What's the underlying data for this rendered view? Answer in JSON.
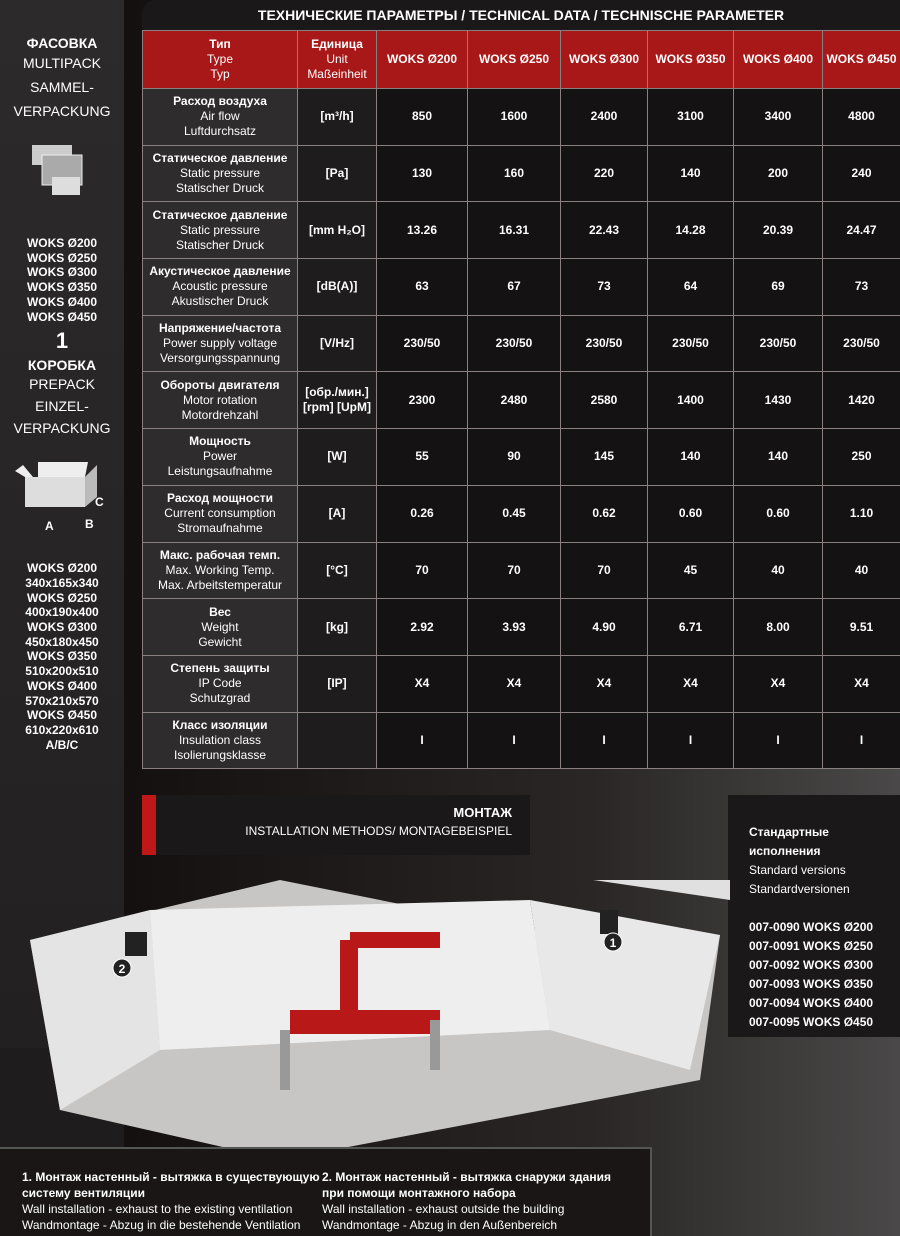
{
  "sidebar": {
    "multipack": [
      "ФАСОВКА",
      "MULTIPACK",
      "SAMMEL-",
      "VERPACKUNG"
    ],
    "multipack_models": [
      "WOKS Ø200",
      "WOKS Ø250",
      "WOKS Ø300",
      "WOKS Ø350",
      "WOKS Ø400",
      "WOKS Ø450"
    ],
    "multipack_qty": "1",
    "prepack": [
      "КОРОБКА",
      "PREPACK",
      "EINZEL-",
      "VERPACKUNG"
    ],
    "box_labels": [
      "A",
      "B",
      "C"
    ],
    "dims": [
      "WOKS Ø200",
      "340x165x340",
      "WOKS Ø250",
      "400x190x400",
      "WOKS Ø300",
      "450x180x450",
      "WOKS Ø350",
      "510x200x510",
      "WOKS Ø400",
      "570x210x570",
      "WOKS Ø450",
      "610x220x610",
      "A/B/C"
    ]
  },
  "table": {
    "title": "ТЕХНИЧЕСКИЕ ПАРАМЕТРЫ / TECHNICAL DATA / TECHNISCHE PARAMETER",
    "head_param": [
      "Тип",
      "Type",
      "Typ"
    ],
    "head_unit": [
      "Единица",
      "Unit",
      "Maßeinheit"
    ],
    "models": [
      "WOKS Ø200",
      "WOKS Ø250",
      "WOKS Ø300",
      "WOKS Ø350",
      "WOKS Ø400",
      "WOKS Ø450"
    ],
    "rows": [
      {
        "p": [
          "Расход воздуха",
          "Air flow",
          "Luftdurchsatz"
        ],
        "u": "[m³/h]",
        "v": [
          "850",
          "1600",
          "2400",
          "3100",
          "3400",
          "4800"
        ]
      },
      {
        "p": [
          "Статическое давление",
          "Static pressure",
          "Statischer Druck"
        ],
        "u": "[Pa]",
        "v": [
          "130",
          "160",
          "220",
          "140",
          "200",
          "240"
        ]
      },
      {
        "p": [
          "Статическое давление",
          "Static pressure",
          "Statischer Druck"
        ],
        "u": "[mm H₂O]",
        "v": [
          "13.26",
          "16.31",
          "22.43",
          "14.28",
          "20.39",
          "24.47"
        ]
      },
      {
        "p": [
          "Акустическое давление",
          "Acoustic pressure",
          "Akustischer Druck"
        ],
        "u": "[dB(A)]",
        "v": [
          "63",
          "67",
          "73",
          "64",
          "69",
          "73"
        ]
      },
      {
        "p": [
          "Напряжение/частота",
          "Power supply voltage",
          "Versorgungsspannung"
        ],
        "u": "[V/Hz]",
        "v": [
          "230/50",
          "230/50",
          "230/50",
          "230/50",
          "230/50",
          "230/50"
        ]
      },
      {
        "p": [
          "Обороты двигателя",
          "Motor rotation",
          "Motordrehzahl"
        ],
        "u": "[обр./мин.] [rpm] [UpM]",
        "v": [
          "2300",
          "2480",
          "2580",
          "1400",
          "1430",
          "1420"
        ]
      },
      {
        "p": [
          "Мощность",
          "Power",
          "Leistungsaufnahme"
        ],
        "u": "[W]",
        "v": [
          "55",
          "90",
          "145",
          "140",
          "140",
          "250"
        ]
      },
      {
        "p": [
          "Расход мощности",
          "Current consumption",
          "Stromaufnahme"
        ],
        "u": "[A]",
        "v": [
          "0.26",
          "0.45",
          "0.62",
          "0.60",
          "0.60",
          "1.10"
        ]
      },
      {
        "p": [
          "Макс. рабочая темп.",
          "Max. Working Temp.",
          "Max. Arbeitstemperatur"
        ],
        "u": "[°C]",
        "v": [
          "70",
          "70",
          "70",
          "45",
          "40",
          "40"
        ]
      },
      {
        "p": [
          "Вес",
          "Weight",
          "Gewicht"
        ],
        "u": "[kg]",
        "v": [
          "2.92",
          "3.93",
          "4.90",
          "6.71",
          "8.00",
          "9.51"
        ]
      },
      {
        "p": [
          "Степень защиты",
          "IP Code",
          "Schutzgrad"
        ],
        "u": "[IP]",
        "v": [
          "X4",
          "X4",
          "X4",
          "X4",
          "X4",
          "X4"
        ]
      },
      {
        "p": [
          "Класс изоляции",
          "Insulation class",
          "Isolierungsklasse"
        ],
        "u": "",
        "v": [
          "I",
          "I",
          "I",
          "I",
          "I",
          "I"
        ]
      }
    ]
  },
  "montage": {
    "title": "МОНТАЖ",
    "subtitle": "INSTALLATION METHODS/ MONTAGEBEISPIEL"
  },
  "standard": {
    "title": "Стандартные исполнения",
    "en": "Standard versions",
    "de": "Standardversionen",
    "items": [
      "007-0090 WOKS Ø200",
      "007-0091 WOKS Ø250",
      "007-0092 WOKS Ø300",
      "007-0093 WOKS Ø350",
      "007-0094 WOKS Ø400",
      "007-0095 WOKS Ø450"
    ]
  },
  "markers": [
    "1",
    "2"
  ],
  "captions": [
    {
      "ru": "1. Монтаж настенный - вытяжка в существующую систему вентиляции",
      "en": "Wall installation - exhaust to the existing ventilation",
      "de": "Wandmontage - Abzug in die bestehende Ventilation"
    },
    {
      "ru": "2. Монтаж настенный - вытяжка снаружи здания при помощи монтажного набора",
      "en": "Wall installation - exhaust outside the building",
      "de": "Wandmontage - Abzug in den Außenbereich"
    }
  ]
}
